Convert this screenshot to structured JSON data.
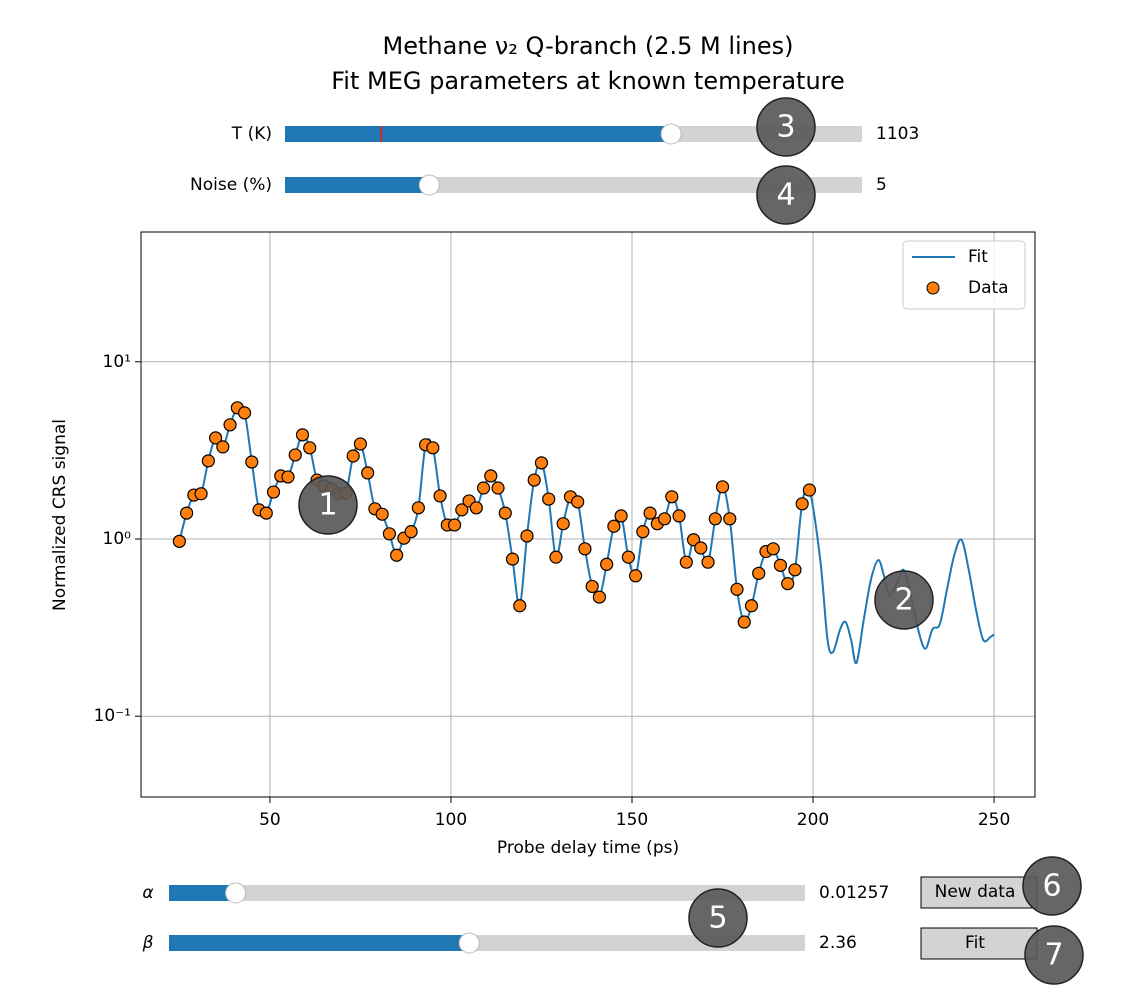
{
  "chart_data": {
    "type": "line-scatter",
    "title": [
      "Methane ν₂ Q-branch (2.5 M lines)",
      "Fit MEG parameters at known temperature"
    ],
    "xlabel": "Probe delay time (ps)",
    "ylabel": "Normalized CRS signal",
    "xlim": [
      14.4,
      261.3
    ],
    "ylim": [
      0.035,
      54
    ],
    "yscale": "log",
    "grid": true,
    "legend": "upper right",
    "xticks": [
      50,
      100,
      150,
      200,
      250
    ],
    "yticks": [
      {
        "value": 0.1,
        "label": "10⁻¹"
      },
      {
        "value": 1,
        "label": "10⁰"
      },
      {
        "value": 10,
        "label": "10¹"
      }
    ],
    "series": [
      {
        "name": "Fit",
        "kind": "line",
        "color": "#1f77b4",
        "x": [
          25,
          27,
          29,
          31,
          33,
          35,
          37,
          39,
          41,
          43,
          45,
          47,
          49,
          51,
          53,
          55,
          57,
          59,
          61,
          63,
          65,
          67,
          69,
          71,
          73,
          75,
          77,
          79,
          81,
          83,
          85,
          87,
          89,
          91,
          93,
          95,
          97,
          99,
          101,
          103,
          105,
          107,
          109,
          111,
          113,
          115,
          117,
          119,
          121,
          123,
          125,
          127,
          129,
          131,
          133,
          135,
          137,
          139,
          141,
          143,
          145,
          147,
          149,
          151,
          153,
          155,
          157,
          159,
          161,
          163,
          165,
          167,
          169,
          171,
          173,
          175,
          177,
          179,
          181,
          183,
          185,
          187,
          189,
          191,
          193,
          195,
          197,
          199,
          202,
          204,
          205.5,
          207.5,
          209,
          210.5,
          212,
          214,
          216,
          218,
          219.5,
          221,
          223,
          225,
          227,
          229,
          231,
          233,
          235,
          237,
          239,
          241,
          243,
          245,
          247,
          249,
          250
        ],
        "values": [
          0.97,
          1.4,
          1.77,
          1.8,
          2.76,
          3.72,
          3.31,
          4.41,
          5.5,
          5.15,
          2.72,
          1.46,
          1.4,
          1.84,
          2.27,
          2.24,
          2.98,
          3.87,
          3.27,
          2.15,
          1.99,
          1.92,
          1.8,
          1.82,
          2.94,
          3.44,
          2.36,
          1.48,
          1.38,
          1.07,
          0.81,
          1.01,
          1.1,
          1.5,
          3.4,
          3.27,
          1.75,
          1.2,
          1.2,
          1.46,
          1.64,
          1.5,
          1.94,
          2.27,
          1.94,
          1.4,
          0.77,
          0.42,
          1.04,
          2.15,
          2.69,
          1.68,
          0.79,
          1.22,
          1.73,
          1.62,
          0.88,
          0.54,
          0.47,
          0.72,
          1.18,
          1.35,
          0.79,
          0.62,
          1.1,
          1.4,
          1.22,
          1.3,
          1.73,
          1.35,
          0.74,
          0.99,
          0.89,
          0.74,
          1.3,
          1.97,
          1.3,
          0.52,
          0.34,
          0.42,
          0.64,
          0.85,
          0.88,
          0.71,
          0.56,
          0.67,
          1.58,
          1.89,
          0.76,
          0.27,
          0.23,
          0.31,
          0.34,
          0.27,
          0.2,
          0.35,
          0.59,
          0.76,
          0.63,
          0.48,
          0.55,
          0.67,
          0.48,
          0.31,
          0.24,
          0.31,
          0.33,
          0.52,
          0.81,
          0.99,
          0.67,
          0.4,
          0.27,
          0.28,
          0.29
        ]
      },
      {
        "name": "Data",
        "kind": "scatter",
        "color": "#ff7f0e",
        "x": [
          25,
          27,
          29,
          31,
          33,
          35,
          37,
          39,
          41,
          43,
          45,
          47,
          49,
          51,
          53,
          55,
          57,
          59,
          61,
          63,
          65,
          67,
          69,
          71,
          73,
          75,
          77,
          79,
          81,
          83,
          85,
          87,
          89,
          91,
          93,
          95,
          97,
          99,
          101,
          103,
          105,
          107,
          109,
          111,
          113,
          115,
          117,
          119,
          121,
          123,
          125,
          127,
          129,
          131,
          133,
          135,
          137,
          139,
          141,
          143,
          145,
          147,
          149,
          151,
          153,
          155,
          157,
          159,
          161,
          163,
          165,
          167,
          169,
          171,
          173,
          175,
          177,
          179,
          181,
          183,
          185,
          187,
          189,
          191,
          193,
          195,
          197,
          199
        ],
        "values": [
          0.97,
          1.4,
          1.77,
          1.8,
          2.76,
          3.72,
          3.31,
          4.41,
          5.5,
          5.15,
          2.72,
          1.46,
          1.4,
          1.84,
          2.27,
          2.24,
          2.98,
          3.87,
          3.27,
          2.15,
          1.99,
          1.92,
          1.8,
          1.82,
          2.94,
          3.44,
          2.36,
          1.48,
          1.38,
          1.07,
          0.81,
          1.01,
          1.1,
          1.5,
          3.4,
          3.27,
          1.75,
          1.2,
          1.2,
          1.46,
          1.64,
          1.5,
          1.94,
          2.27,
          1.94,
          1.4,
          0.77,
          0.42,
          1.04,
          2.15,
          2.69,
          1.68,
          0.79,
          1.22,
          1.73,
          1.62,
          0.88,
          0.54,
          0.47,
          0.72,
          1.18,
          1.35,
          0.79,
          0.62,
          1.1,
          1.4,
          1.22,
          1.3,
          1.73,
          1.35,
          0.74,
          0.99,
          0.89,
          0.74,
          1.3,
          1.97,
          1.3,
          0.52,
          0.34,
          0.42,
          0.64,
          0.85,
          0.88,
          0.71,
          0.56,
          0.67,
          1.58,
          1.89
        ]
      }
    ]
  },
  "controls": {
    "sliders": [
      {
        "label": "T (K)",
        "value": 1103,
        "range": [
          300,
          1500
        ],
        "init": 500
      },
      {
        "label": "Noise (%)",
        "value": 5,
        "range": [
          0,
          20
        ]
      },
      {
        "label": "α",
        "value": 0.01257,
        "range": [
          0,
          0.12
        ]
      },
      {
        "label": "β",
        "value": 2.36,
        "range": [
          0,
          5
        ]
      }
    ],
    "buttons": [
      "New data",
      "Fit"
    ]
  },
  "callouts": [
    "1",
    "2",
    "3",
    "4",
    "5",
    "6",
    "7"
  ]
}
